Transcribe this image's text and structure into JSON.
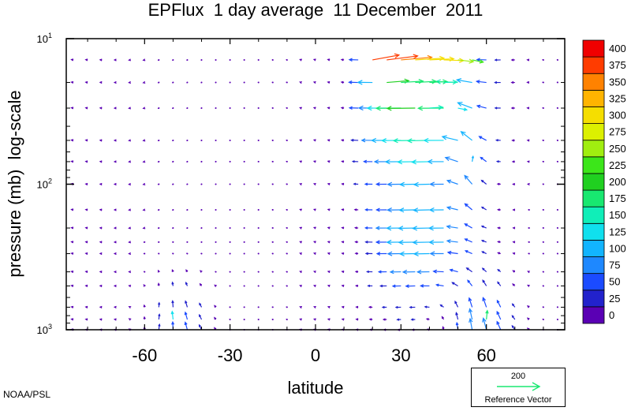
{
  "chart_data": {
    "type": "vector-field",
    "title": "EPFlux  1 day average  11 December  2011",
    "xlabel": "latitude",
    "ylabel": "pressure (mb)  log-scale",
    "x_ticks": [
      -60,
      -30,
      0,
      30,
      60
    ],
    "xlim": [
      -87.5,
      87.5
    ],
    "y_scale": "log",
    "ylim": [
      1000,
      10
    ],
    "y_ticks": [
      {
        "value": 10,
        "base": "10",
        "exp": "1"
      },
      {
        "value": 100,
        "base": "10",
        "exp": "2"
      },
      {
        "value": 1000,
        "base": "10",
        "exp": "3"
      }
    ],
    "pressure_levels": [
      14,
      20,
      30,
      50,
      70,
      100,
      150,
      200,
      250,
      300,
      400,
      500,
      700,
      850,
      1000
    ],
    "colorbar": {
      "levels": [
        0,
        25,
        50,
        75,
        100,
        125,
        150,
        175,
        200,
        225,
        250,
        275,
        300,
        325,
        350,
        375,
        400
      ],
      "colors": [
        "#5a00b4",
        "#2222cc",
        "#1b4bff",
        "#1e88ff",
        "#12b4ff",
        "#10e0ee",
        "#10eeb8",
        "#18e870",
        "#20d020",
        "#3ce61a",
        "#a0ee10",
        "#dcf000",
        "#f5de00",
        "#ffb400",
        "#ff8200",
        "#ff3c00",
        "#f00000"
      ]
    },
    "reference_vector": {
      "magnitude": "200",
      "label": "Reference Vector",
      "color": "#18e870"
    },
    "notable_vectors": [
      {
        "lat": 20,
        "p": 14,
        "u": 120,
        "v": 22,
        "mag": 390
      },
      {
        "lat": 25,
        "p": 14,
        "u": 140,
        "v": 18,
        "mag": 380
      },
      {
        "lat": 30,
        "p": 14,
        "u": 140,
        "v": 12,
        "mag": 350
      },
      {
        "lat": 35,
        "p": 14,
        "u": 130,
        "v": 8,
        "mag": 320
      },
      {
        "lat": 40,
        "p": 14,
        "u": 110,
        "v": 5,
        "mag": 310
      },
      {
        "lat": 45,
        "p": 14,
        "u": 90,
        "v": -3,
        "mag": 300
      },
      {
        "lat": 50,
        "p": 14,
        "u": 70,
        "v": -8,
        "mag": 260
      },
      {
        "lat": 55,
        "p": 14,
        "u": 50,
        "v": -10,
        "mag": 230
      },
      {
        "lat": 25,
        "p": 20,
        "u": 100,
        "v": 8,
        "mag": 200
      },
      {
        "lat": 30,
        "p": 20,
        "u": 100,
        "v": 6,
        "mag": 190
      },
      {
        "lat": 35,
        "p": 20,
        "u": 95,
        "v": 5,
        "mag": 190
      },
      {
        "lat": 40,
        "p": 20,
        "u": 80,
        "v": 4,
        "mag": 180
      },
      {
        "lat": 45,
        "p": 20,
        "u": 60,
        "v": 2,
        "mag": 160
      },
      {
        "lat": 40,
        "p": 30,
        "u": 60,
        "v": 4,
        "mag": 150
      },
      {
        "lat": 50,
        "p": 30,
        "u": 40,
        "v": -8,
        "mag": 130
      },
      {
        "lat": 55,
        "p": 70,
        "u": 4,
        "v": 24,
        "mag": 110
      },
      {
        "lat": 60,
        "p": 850,
        "u": 4,
        "v": 40,
        "mag": 190
      },
      {
        "lat": -50,
        "p": 850,
        "u": -4,
        "v": 36,
        "mag": 130
      }
    ]
  },
  "credit": "NOAA/PSL"
}
